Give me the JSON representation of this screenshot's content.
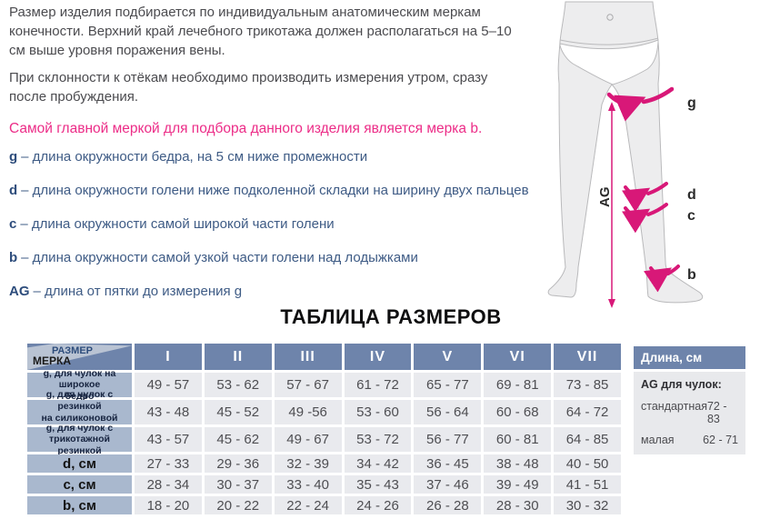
{
  "intro": {
    "p1": "Размер изделия подбирается по индивидуальным анатомическим меркам\nконечности. Верхний край лечебного трикотажа должен располагаться на 5–10\nсм выше уровня поражения вены.",
    "p2": "При склонности к отёкам необходимо производить измерения утром, сразу\nпосле пробуждения.",
    "p3": "Самой главной меркой для подбора данного изделия является мерка b."
  },
  "measurements": [
    {
      "letter": "g",
      "desc": "– длина окружности бедра, на 5 см ниже промежности"
    },
    {
      "letter": "d",
      "desc": "– длина окружности голени ниже подколенной складки на ширину двух пальцев"
    },
    {
      "letter": "c",
      "desc": "– длина окружности самой широкой части голени"
    },
    {
      "letter": "b",
      "desc": "– длина окружности самой узкой части голени над лодыжками"
    },
    {
      "letter": "AG",
      "desc": "– длина от пятки до измерения g"
    }
  ],
  "diagram": {
    "labels": {
      "g": "g",
      "d": "d",
      "c": "c",
      "b": "b",
      "ag": "AG"
    },
    "accent_color": "#d81878"
  },
  "table": {
    "title": "ТАБЛИЦА РАЗМЕРОВ",
    "corner": {
      "top": "РАЗМЕР",
      "bottom": "МЕРКА"
    },
    "columns": [
      "I",
      "II",
      "III",
      "IV",
      "V",
      "VI",
      "VII"
    ],
    "rows": [
      {
        "label": "g, для чулок на широкое\nбедро",
        "small": true,
        "values": [
          "49 - 57",
          "53 - 62",
          "57 - 67",
          "61 - 72",
          "65 - 77",
          "69 - 81",
          "73 - 85"
        ]
      },
      {
        "label": "g, для чулок с  резинкой\nна силиконовой основе",
        "small": true,
        "values": [
          "43 - 48",
          "45 - 52",
          "49 -56",
          "53 - 60",
          "56 - 64",
          "60 - 68",
          "64 - 72"
        ]
      },
      {
        "label": "g, для чулок с\nтрикотажной резинкой",
        "small": true,
        "values": [
          "43 - 57",
          "45 - 62",
          "49 - 67",
          "53 - 72",
          "56 - 77",
          "60 - 81",
          "64 - 85"
        ]
      },
      {
        "label": "d, см",
        "small": false,
        "values": [
          "27 - 33",
          "29 - 36",
          "32 - 39",
          "34 - 42",
          "36 - 45",
          "38 - 48",
          "40 - 50"
        ]
      },
      {
        "label": "c, см",
        "small": false,
        "values": [
          "28 - 34",
          "30 - 37",
          "33 - 40",
          "35 - 43",
          "37 - 46",
          "39 - 49",
          "41 - 51"
        ]
      },
      {
        "label": "b, см",
        "small": false,
        "values": [
          "18 - 20",
          "20 - 22",
          "22 - 24",
          "24 - 26",
          "26 - 28",
          "28 - 30",
          "30 - 32"
        ]
      }
    ],
    "header_color": "#6e84ab",
    "label_color": "#a9b8ce",
    "cell_color": "#e9eaee"
  },
  "length_panel": {
    "header": "Длина, см",
    "subheader": "AG для чулок:",
    "rows": [
      {
        "name": "стандартная",
        "value": "72 - 83"
      },
      {
        "name": "малая",
        "value": "62 - 71"
      }
    ]
  }
}
